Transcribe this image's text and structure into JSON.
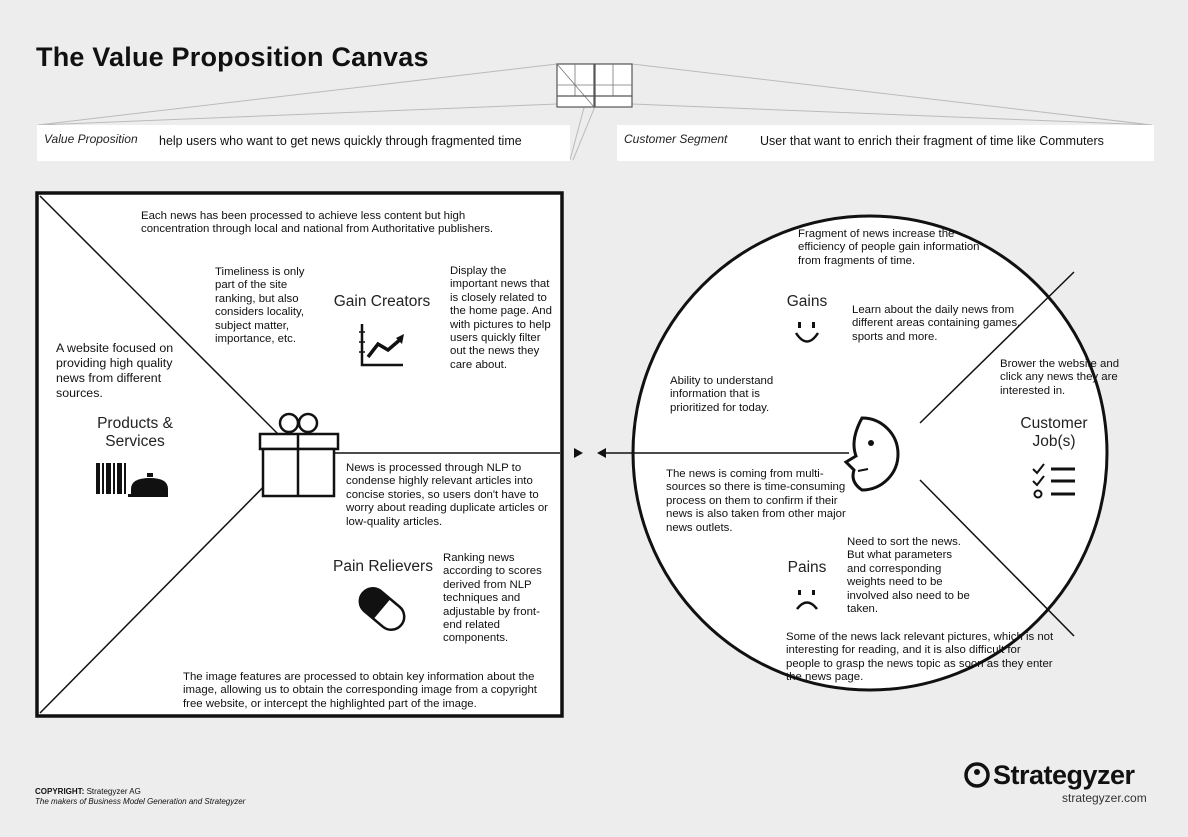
{
  "title": "The Value Proposition Canvas",
  "value_proposition": {
    "label": "Value Proposition",
    "text": "help users who want to get news quickly through fragmented time"
  },
  "customer_segment": {
    "label": "Customer Segment",
    "text": "User that want to enrich their fragment of time like Commuters"
  },
  "square": {
    "top_text": "Each news has been processed to achieve less content but high concentration through local and national from Authoritative publishers.",
    "timeliness_text": "Timeliness is only part of the site ranking, but also considers locality, subject matter, importance, etc.",
    "gain_creators_label": "Gain Creators",
    "display_text": "Display the important news that is closely related to the home page. And with pictures to help users quickly filter out the news they care about.",
    "website_text": "A website focused on providing high quality news from different sources.",
    "products_label": "Products & Services",
    "nlp_text": "News is processed through NLP to condense highly relevant articles into concise stories, so users don't have to worry about reading duplicate articles or low-quality articles.",
    "pain_relievers_label": "Pain Relievers",
    "ranking_text": "Ranking news according to scores derived from NLP techniques and adjustable by front-end related components.",
    "image_text": "The image features are processed to obtain key information about the image, allowing us to obtain the corresponding image from a copyright free website, or intercept the highlighted part of the image."
  },
  "circle": {
    "fragment_text": "Fragment of news increase the efficiency of people gain information from fragments of time.",
    "gains_label": "Gains",
    "learn_text": "Learn about the daily news from different areas containing games, sports and more.",
    "ability_text": "Ability to understand information that is prioritized for today.",
    "brower_text": "Brower the website and click any news they are interested in.",
    "customer_jobs_label": "Customer Job(s)",
    "coming_text": "The news is coming from multi-sources so there is time-consuming process on them to confirm if their news is also taken from other major news outlets.",
    "pains_label": "Pains",
    "sort_text": "Need to sort the news. But what parameters and corresponding weights need to be involved also need to be taken.",
    "lack_text": "Some of the news lack relevant pictures, which is not interesting for reading, and it is also difficult for people to grasp the news topic as soon as they enter the news page."
  },
  "footer": {
    "copyright_label": "COPYRIGHT:",
    "copyright_owner": "Strategyzer AG",
    "tagline": "The makers of Business Model Generation and Strategyzer",
    "logo_text": "Strategyzer",
    "logo_url": "strategyzer.com"
  }
}
